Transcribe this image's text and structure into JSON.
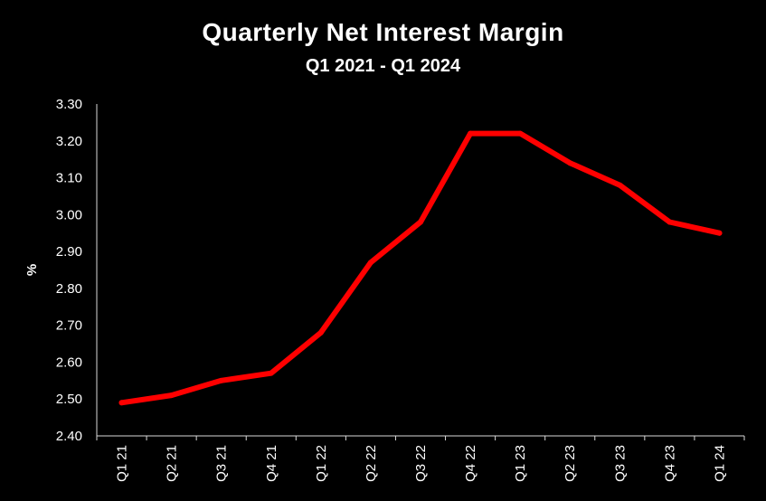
{
  "chart_data": {
    "type": "line",
    "title": "Quarterly Net Interest Margin",
    "subtitle": "Q1 2021 - Q1 2024",
    "xlabel": "",
    "ylabel": "%",
    "ylim": [
      2.4,
      3.3
    ],
    "yticks": [
      "2.40",
      "2.50",
      "2.60",
      "2.70",
      "2.80",
      "2.90",
      "3.00",
      "3.10",
      "3.20",
      "3.30"
    ],
    "categories": [
      "Q1 21",
      "Q2 21",
      "Q3 21",
      "Q4 21",
      "Q1 22",
      "Q2 22",
      "Q3 22",
      "Q4 22",
      "Q1 23",
      "Q2 23",
      "Q3 23",
      "Q4 23",
      "Q1 24"
    ],
    "series": [
      {
        "values": [
          2.49,
          2.51,
          2.55,
          2.57,
          2.68,
          2.87,
          2.98,
          3.22,
          3.22,
          3.14,
          3.08,
          2.98,
          2.95
        ],
        "color": "#ff0000"
      }
    ],
    "grid": false,
    "legend": "none",
    "background": "#000000"
  }
}
